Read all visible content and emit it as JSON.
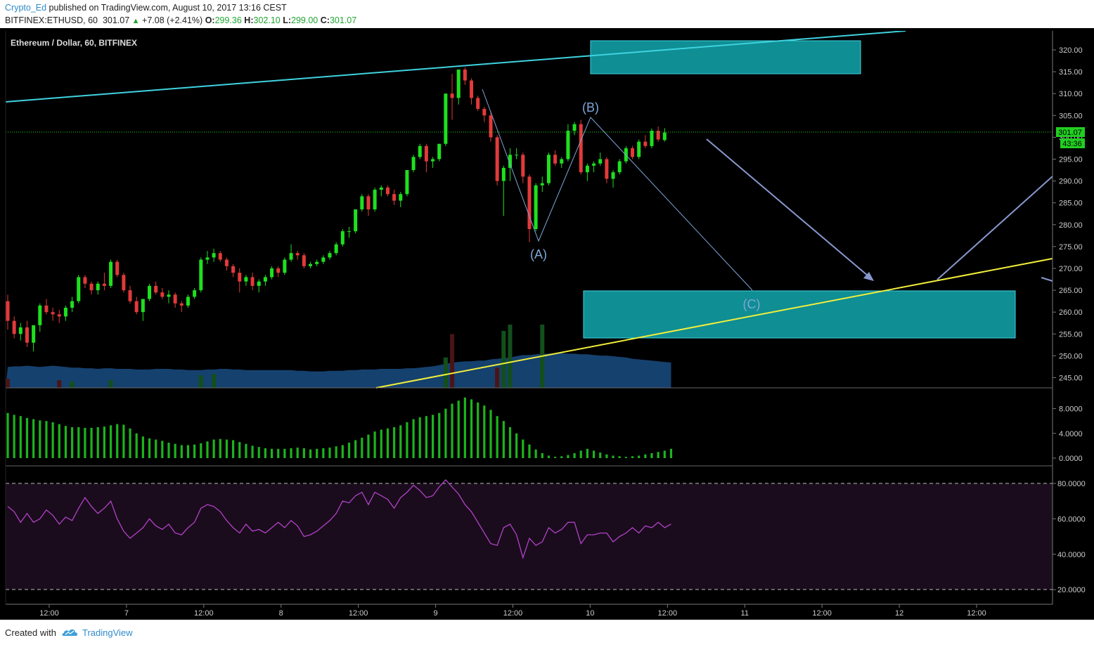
{
  "header": {
    "author": "Crypto_Ed",
    "published_text": "published on TradingView.com, August 10, 2017 13:16 CEST",
    "symbol_line": "BITFINEX:ETHUSD, 60",
    "last": "301.07",
    "change": "+7.08 (+2.41%)",
    "o_label": "O:",
    "o_value": "299.36",
    "h_label": "H:",
    "h_value": "302.10",
    "l_label": "L:",
    "l_value": "299.00",
    "c_label": "C:",
    "c_value": "301.07"
  },
  "footer": {
    "created_with": "Created with",
    "brand": "TradingView"
  },
  "colors": {
    "up": "#1ee01e",
    "down": "#e23a3a",
    "background": "#000000",
    "rsi_line": "#b341c9",
    "rsi_band": "#1a0c1c",
    "channel_cyan": "#3fd3df",
    "trend_yellow": "#f2ef3c",
    "box_fill": "#0f8e94",
    "wave_label": "#7fa6d9",
    "price_tag": "#21ce21"
  },
  "chart_data": [
    {
      "type": "candlestick",
      "title": "Ethereum / Dollar, 60, BITFINEX",
      "x_tick_labels": [
        "12:00",
        "7",
        "12:00",
        "8",
        "12:00",
        "9",
        "12:00",
        "10",
        "12:00",
        "11",
        "12:00",
        "12",
        "12:00"
      ],
      "x_tick_bar_index": [
        6,
        18,
        30,
        42,
        54,
        66,
        78,
        90,
        102,
        114,
        126,
        138,
        150
      ],
      "y_ticks": [
        "320.00",
        "315.00",
        "310.00",
        "305.00",
        "300.00",
        "295.00",
        "290.00",
        "285.00",
        "280.00",
        "275.00",
        "270.00",
        "265.00",
        "260.00",
        "255.00",
        "250.00",
        "245.00"
      ],
      "ylim": [
        243,
        324
      ],
      "last_price_tag": "301.07",
      "countdown_tag": "43:36",
      "ohlc": [
        [
          262.5,
          264.0,
          256.0,
          258.0
        ],
        [
          258.0,
          259.0,
          254.0,
          255.0
        ],
        [
          255.0,
          257.5,
          253.5,
          256.5
        ],
        [
          256.5,
          258.0,
          252.0,
          253.0
        ],
        [
          253.0,
          257.0,
          251.0,
          257.0
        ],
        [
          257.0,
          262.0,
          255.5,
          261.5
        ],
        [
          261.5,
          263.0,
          259.5,
          260.0
        ],
        [
          260.0,
          261.0,
          258.0,
          259.5
        ],
        [
          259.5,
          260.5,
          257.5,
          259.0
        ],
        [
          259.0,
          261.5,
          258.0,
          261.0
        ],
        [
          261.0,
          263.5,
          260.0,
          262.5
        ],
        [
          262.5,
          268.5,
          262.0,
          268.0
        ],
        [
          268.0,
          268.5,
          265.5,
          266.5
        ],
        [
          266.5,
          267.0,
          264.0,
          265.0
        ],
        [
          265.0,
          267.0,
          264.0,
          266.5
        ],
        [
          266.5,
          269.0,
          265.0,
          266.0
        ],
        [
          266.0,
          272.0,
          265.5,
          271.5
        ],
        [
          271.5,
          272.0,
          268.0,
          268.5
        ],
        [
          268.5,
          269.0,
          264.5,
          265.0
        ],
        [
          265.0,
          266.0,
          262.0,
          262.5
        ],
        [
          262.5,
          263.5,
          259.5,
          260.0
        ],
        [
          260.0,
          263.0,
          258.0,
          263.0
        ],
        [
          263.0,
          266.5,
          262.5,
          266.0
        ],
        [
          266.0,
          267.0,
          264.0,
          264.5
        ],
        [
          264.5,
          265.5,
          263.0,
          263.5
        ],
        [
          263.5,
          265.0,
          262.0,
          264.0
        ],
        [
          264.0,
          264.5,
          261.0,
          262.0
        ],
        [
          262.0,
          262.5,
          260.0,
          261.5
        ],
        [
          261.5,
          264.0,
          261.0,
          263.5
        ],
        [
          263.5,
          265.5,
          263.0,
          265.0
        ],
        [
          265.0,
          272.5,
          264.5,
          272.0
        ],
        [
          272.0,
          274.0,
          271.0,
          272.5
        ],
        [
          272.5,
          274.5,
          271.5,
          273.5
        ],
        [
          273.5,
          274.0,
          271.5,
          272.0
        ],
        [
          272.0,
          272.5,
          269.5,
          270.5
        ],
        [
          270.5,
          271.0,
          268.0,
          269.0
        ],
        [
          269.0,
          270.0,
          264.5,
          267.0
        ],
        [
          267.0,
          268.5,
          266.0,
          268.0
        ],
        [
          268.0,
          269.0,
          265.0,
          266.0
        ],
        [
          266.0,
          267.5,
          264.5,
          267.0
        ],
        [
          267.0,
          268.5,
          266.0,
          268.0
        ],
        [
          268.0,
          270.5,
          267.5,
          270.0
        ],
        [
          270.0,
          270.5,
          268.0,
          269.0
        ],
        [
          269.0,
          272.5,
          268.5,
          272.0
        ],
        [
          272.0,
          275.5,
          271.5,
          273.5
        ],
        [
          273.5,
          274.0,
          272.0,
          273.0
        ],
        [
          273.0,
          273.5,
          270.0,
          270.5
        ],
        [
          270.5,
          271.5,
          270.0,
          271.0
        ],
        [
          271.0,
          272.0,
          270.5,
          271.5
        ],
        [
          271.5,
          273.0,
          271.0,
          272.5
        ],
        [
          272.5,
          274.0,
          272.0,
          273.5
        ],
        [
          273.5,
          276.0,
          273.0,
          275.5
        ],
        [
          275.5,
          279.0,
          275.0,
          278.5
        ],
        [
          278.5,
          279.5,
          277.0,
          278.5
        ],
        [
          278.5,
          283.5,
          278.0,
          283.5
        ],
        [
          283.5,
          287.0,
          283.0,
          286.5
        ],
        [
          286.5,
          287.0,
          282.0,
          283.5
        ],
        [
          283.5,
          288.5,
          283.0,
          288.0
        ],
        [
          288.0,
          289.0,
          286.5,
          288.5
        ],
        [
          288.5,
          289.0,
          286.5,
          287.0
        ],
        [
          287.0,
          288.0,
          284.5,
          285.5
        ],
        [
          285.5,
          287.5,
          284.0,
          287.0
        ],
        [
          287.0,
          292.5,
          286.5,
          292.5
        ],
        [
          292.5,
          296.0,
          292.0,
          295.5
        ],
        [
          295.5,
          298.5,
          295.0,
          298.0
        ],
        [
          298.0,
          298.5,
          292.0,
          294.5
        ],
        [
          294.5,
          295.5,
          293.0,
          295.0
        ],
        [
          295.0,
          298.5,
          294.5,
          298.5
        ],
        [
          298.5,
          310.0,
          298.0,
          310.0
        ],
        [
          310.0,
          314.5,
          304.0,
          309.0
        ],
        [
          309.0,
          315.5,
          307.5,
          315.5
        ],
        [
          315.5,
          316.0,
          312.0,
          313.0
        ],
        [
          313.0,
          313.5,
          307.5,
          309.0
        ],
        [
          309.0,
          309.5,
          306.0,
          306.5
        ],
        [
          306.5,
          307.0,
          303.5,
          305.0
        ],
        [
          305.0,
          306.0,
          299.0,
          300.0
        ],
        [
          300.0,
          300.5,
          289.0,
          290.0
        ],
        [
          290.0,
          293.5,
          282.0,
          293.0
        ],
        [
          293.0,
          297.5,
          290.0,
          296.0
        ],
        [
          296.0,
          297.5,
          295.0,
          296.0
        ],
        [
          296.0,
          296.5,
          289.5,
          291.0
        ],
        [
          291.0,
          291.5,
          276.0,
          279.0
        ],
        [
          279.0,
          289.5,
          278.5,
          289.0
        ],
        [
          289.0,
          291.0,
          287.5,
          289.5
        ],
        [
          289.5,
          296.5,
          289.0,
          296.0
        ],
        [
          296.0,
          297.0,
          293.5,
          294.0
        ],
        [
          294.0,
          295.5,
          293.0,
          295.0
        ],
        [
          295.0,
          303.0,
          294.5,
          301.5
        ],
        [
          301.5,
          303.5,
          300.5,
          303.0
        ],
        [
          303.0,
          304.0,
          291.5,
          292.0
        ],
        [
          292.0,
          294.0,
          290.0,
          293.5
        ],
        [
          293.5,
          294.5,
          292.0,
          294.0
        ],
        [
          294.0,
          296.5,
          293.5,
          295.0
        ],
        [
          295.0,
          295.5,
          289.5,
          290.5
        ],
        [
          290.5,
          292.5,
          288.5,
          292.0
        ],
        [
          292.0,
          295.0,
          291.5,
          294.5
        ],
        [
          294.5,
          298.0,
          294.0,
          297.5
        ],
        [
          297.5,
          298.0,
          295.0,
          295.5
        ],
        [
          295.5,
          299.5,
          295.0,
          299.0
        ],
        [
          299.0,
          300.5,
          297.5,
          298.0
        ],
        [
          298.0,
          302.0,
          297.5,
          301.5
        ],
        [
          301.5,
          302.5,
          299.0,
          299.5
        ],
        [
          299.36,
          302.1,
          299.0,
          301.07
        ]
      ]
    },
    {
      "type": "area",
      "name": "volume",
      "values": [
        33,
        34,
        34,
        35,
        34,
        33,
        34,
        35,
        34,
        33,
        32,
        32,
        31,
        31,
        30,
        31,
        31,
        30,
        30,
        30,
        29,
        29,
        29,
        30,
        30,
        30,
        29,
        29,
        28,
        28,
        28,
        29,
        29,
        30,
        30,
        29,
        29,
        28,
        28,
        28,
        28,
        28,
        28,
        28,
        28,
        27,
        27,
        26,
        26,
        26,
        27,
        27,
        27,
        28,
        28,
        29,
        29,
        29,
        30,
        30,
        30,
        30,
        31,
        31,
        32,
        33,
        34,
        36,
        38,
        40,
        41,
        42,
        42,
        43,
        43,
        45,
        46,
        47,
        48,
        50,
        52,
        52,
        53,
        54,
        54,
        55,
        55,
        54,
        54,
        53,
        53,
        52,
        51,
        51,
        50,
        49,
        48,
        46,
        45,
        44,
        43,
        42,
        41,
        40
      ],
      "spike_values": [
        14,
        0,
        0,
        0,
        0,
        0,
        0,
        0,
        12,
        0,
        10,
        0,
        0,
        0,
        0,
        0,
        12,
        0,
        0,
        0,
        0,
        0,
        0,
        0,
        0,
        0,
        0,
        0,
        0,
        0,
        20,
        0,
        22,
        0,
        0,
        0,
        0,
        0,
        0,
        0,
        0,
        0,
        0,
        0,
        0,
        0,
        0,
        0,
        0,
        0,
        0,
        0,
        0,
        0,
        0,
        0,
        0,
        0,
        0,
        0,
        0,
        0,
        0,
        0,
        0,
        0,
        0,
        0,
        48,
        85,
        0,
        0,
        0,
        0,
        0,
        0,
        32,
        90,
        100,
        0,
        0,
        0,
        0,
        100,
        0,
        0,
        0,
        0,
        0,
        0,
        0,
        0,
        0,
        0,
        0,
        0,
        0,
        0,
        0,
        0,
        0,
        0,
        0,
        0
      ]
    },
    {
      "type": "bar",
      "name": "oscillator",
      "y_ticks": [
        "8.0000",
        "4.0000",
        "0.0000"
      ],
      "ylim": [
        -0.05,
        10
      ],
      "values": [
        7.3,
        7.0,
        6.8,
        6.5,
        6.3,
        6.1,
        6.0,
        5.8,
        5.5,
        5.2,
        5.0,
        5.0,
        4.9,
        4.9,
        5.0,
        5.1,
        5.3,
        5.5,
        5.4,
        4.8,
        4.0,
        3.5,
        3.2,
        3.0,
        2.8,
        2.5,
        2.3,
        2.1,
        2.1,
        2.2,
        2.4,
        2.7,
        3.0,
        3.1,
        3.0,
        2.9,
        2.6,
        2.3,
        2.0,
        1.8,
        1.6,
        1.5,
        1.5,
        1.5,
        1.6,
        1.7,
        1.6,
        1.4,
        1.5,
        1.6,
        1.7,
        1.9,
        2.1,
        2.5,
        2.9,
        3.3,
        3.8,
        4.3,
        4.6,
        4.8,
        5.0,
        5.3,
        5.8,
        6.3,
        6.6,
        6.8,
        7.0,
        7.3,
        8.0,
        8.8,
        9.3,
        9.8,
        9.5,
        9.0,
        8.5,
        7.8,
        6.8,
        6.0,
        5.0,
        4.0,
        3.0,
        2.2,
        1.4,
        0.8,
        0.4,
        0.2,
        0.3,
        0.5,
        0.8,
        1.2,
        1.5,
        1.2,
        0.9,
        0.6,
        0.4,
        0.3,
        0.2,
        0.3,
        0.4,
        0.6,
        0.8,
        1.0,
        1.2,
        1.5
      ]
    },
    {
      "type": "line",
      "name": "rsi",
      "y_ticks": [
        "80.0000",
        "60.0000",
        "40.0000",
        "20.0000"
      ],
      "ylim": [
        12,
        85
      ],
      "band": [
        20,
        80
      ],
      "values": [
        67,
        64,
        58,
        63,
        58,
        60,
        65,
        62,
        57,
        61,
        59,
        66,
        72,
        67,
        63,
        66,
        70,
        60,
        53,
        49,
        52,
        55,
        60,
        56,
        54,
        57,
        52,
        51,
        55,
        58,
        66,
        68,
        67,
        64,
        59,
        55,
        52,
        57,
        53,
        54,
        52,
        55,
        58,
        55,
        59,
        56,
        50,
        51,
        53,
        56,
        59,
        63,
        70,
        69,
        73,
        75,
        68,
        75,
        73,
        71,
        66,
        72,
        75,
        79,
        76,
        72,
        73,
        78,
        82,
        78,
        74,
        68,
        64,
        58,
        52,
        46,
        45,
        55,
        57,
        51,
        38,
        49,
        45,
        47,
        55,
        52,
        54,
        58,
        58,
        46,
        51,
        51,
        52,
        52,
        47,
        50,
        52,
        55,
        52,
        56,
        55,
        58,
        55,
        57
      ]
    }
  ],
  "annotations": {
    "wave_labels": [
      "(A)",
      "(B)",
      "(C)"
    ]
  }
}
